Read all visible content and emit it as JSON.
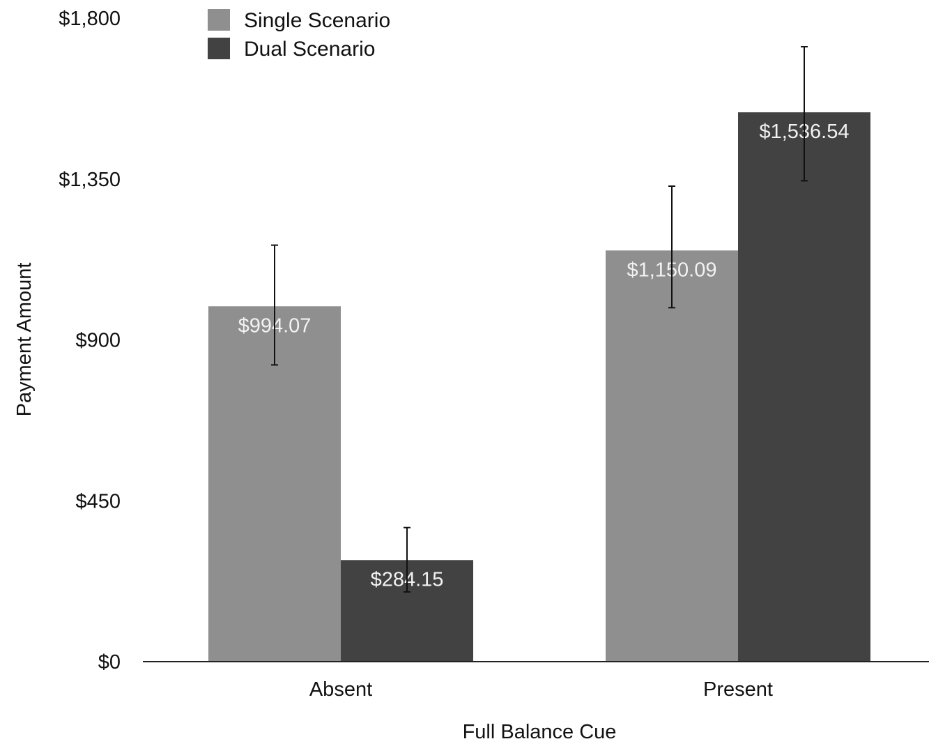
{
  "chart_data": {
    "type": "bar",
    "xlabel": "Full Balance Cue",
    "ylabel": "Payment Amount",
    "categories": [
      "Absent",
      "Present"
    ],
    "ylim": [
      0,
      1800
    ],
    "yticks": [
      0,
      450,
      900,
      1350,
      1800
    ],
    "ytick_labels": [
      "$0",
      "$450",
      "$900",
      "$1,350",
      "$1,800"
    ],
    "grid": false,
    "legend_position": "top-left",
    "series": [
      {
        "name": "Single Scenario",
        "color": "#8f8f8f",
        "values": [
          994.07,
          1150.09
        ],
        "labels": [
          "$994.07",
          "$1,150.09"
        ],
        "error_low": [
          830,
          990
        ],
        "error_high": [
          1165,
          1330
        ]
      },
      {
        "name": "Dual Scenario",
        "color": "#424242",
        "values": [
          284.15,
          1536.54
        ],
        "labels": [
          "$284.15",
          "$1,536.54"
        ],
        "error_low": [
          195,
          1345
        ],
        "error_high": [
          375,
          1720
        ]
      }
    ]
  }
}
